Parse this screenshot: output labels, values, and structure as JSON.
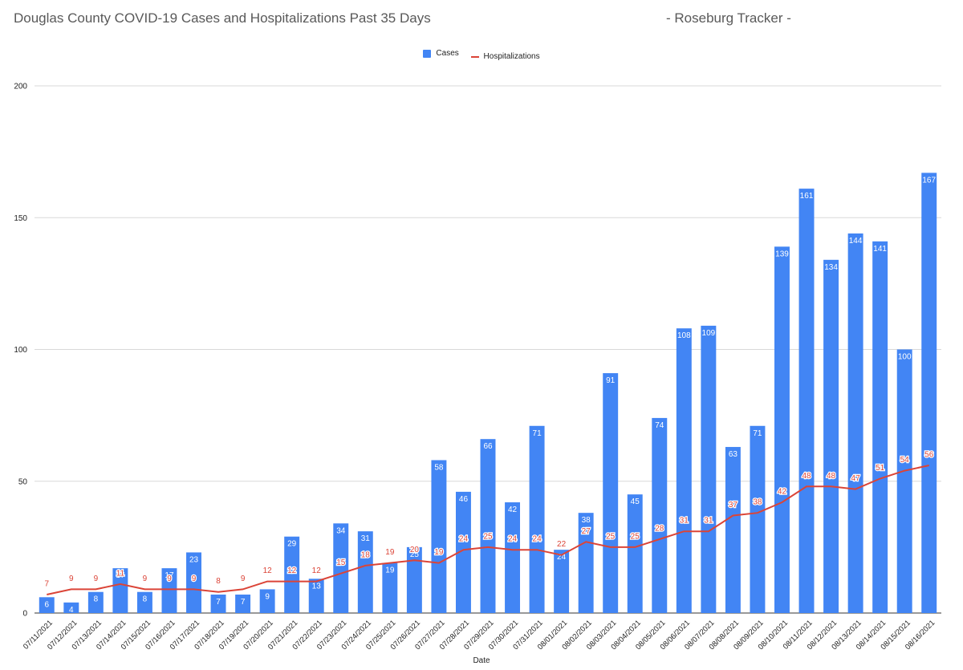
{
  "chart_data": {
    "type": "bar",
    "title": "Douglas County COVID-19 Cases and Hospitalizations Past 35 Days",
    "subtitle": "- Roseburg Tracker -",
    "xlabel": "Date",
    "ylabel": "",
    "ylim": [
      0,
      200
    ],
    "yticks": [
      0,
      50,
      100,
      150,
      200
    ],
    "grid": true,
    "legend_position": "top-center",
    "categories": [
      "07/11/2021",
      "07/12/2021",
      "07/13/2021",
      "07/14/2021",
      "07/15/2021",
      "07/16/2021",
      "07/17/2021",
      "07/18/2021",
      "07/19/2021",
      "07/20/2021",
      "07/21/2021",
      "07/22/2021",
      "07/23/2021",
      "07/24/2021",
      "07/25/2021",
      "07/26/2021",
      "07/27/2021",
      "07/28/2021",
      "07/29/2021",
      "07/30/2021",
      "07/31/2021",
      "08/01/2021",
      "08/02/2021",
      "08/03/2021",
      "08/04/2021",
      "08/05/2021",
      "08/06/2021",
      "08/07/2021",
      "08/08/2021",
      "08/09/2021",
      "08/10/2021",
      "08/11/2021",
      "08/12/2021",
      "08/13/2021",
      "08/14/2021",
      "08/15/2021",
      "08/16/2021"
    ],
    "series": [
      {
        "name": "Cases",
        "type": "bar",
        "color": "#4285f4",
        "values": [
          6,
          4,
          8,
          17,
          8,
          17,
          23,
          7,
          7,
          9,
          29,
          13,
          34,
          31,
          19,
          25,
          58,
          46,
          66,
          42,
          71,
          24,
          38,
          91,
          45,
          74,
          108,
          109,
          63,
          71,
          139,
          161,
          134,
          144,
          141,
          100,
          167
        ]
      },
      {
        "name": "Hospitalizations",
        "type": "line",
        "color": "#db4437",
        "values": [
          7,
          9,
          9,
          11,
          9,
          9,
          9,
          8,
          9,
          12,
          12,
          12,
          15,
          18,
          19,
          20,
          19,
          24,
          25,
          24,
          24,
          22,
          27,
          25,
          25,
          28,
          31,
          31,
          37,
          38,
          42,
          48,
          48,
          47,
          51,
          54,
          56
        ]
      }
    ]
  }
}
